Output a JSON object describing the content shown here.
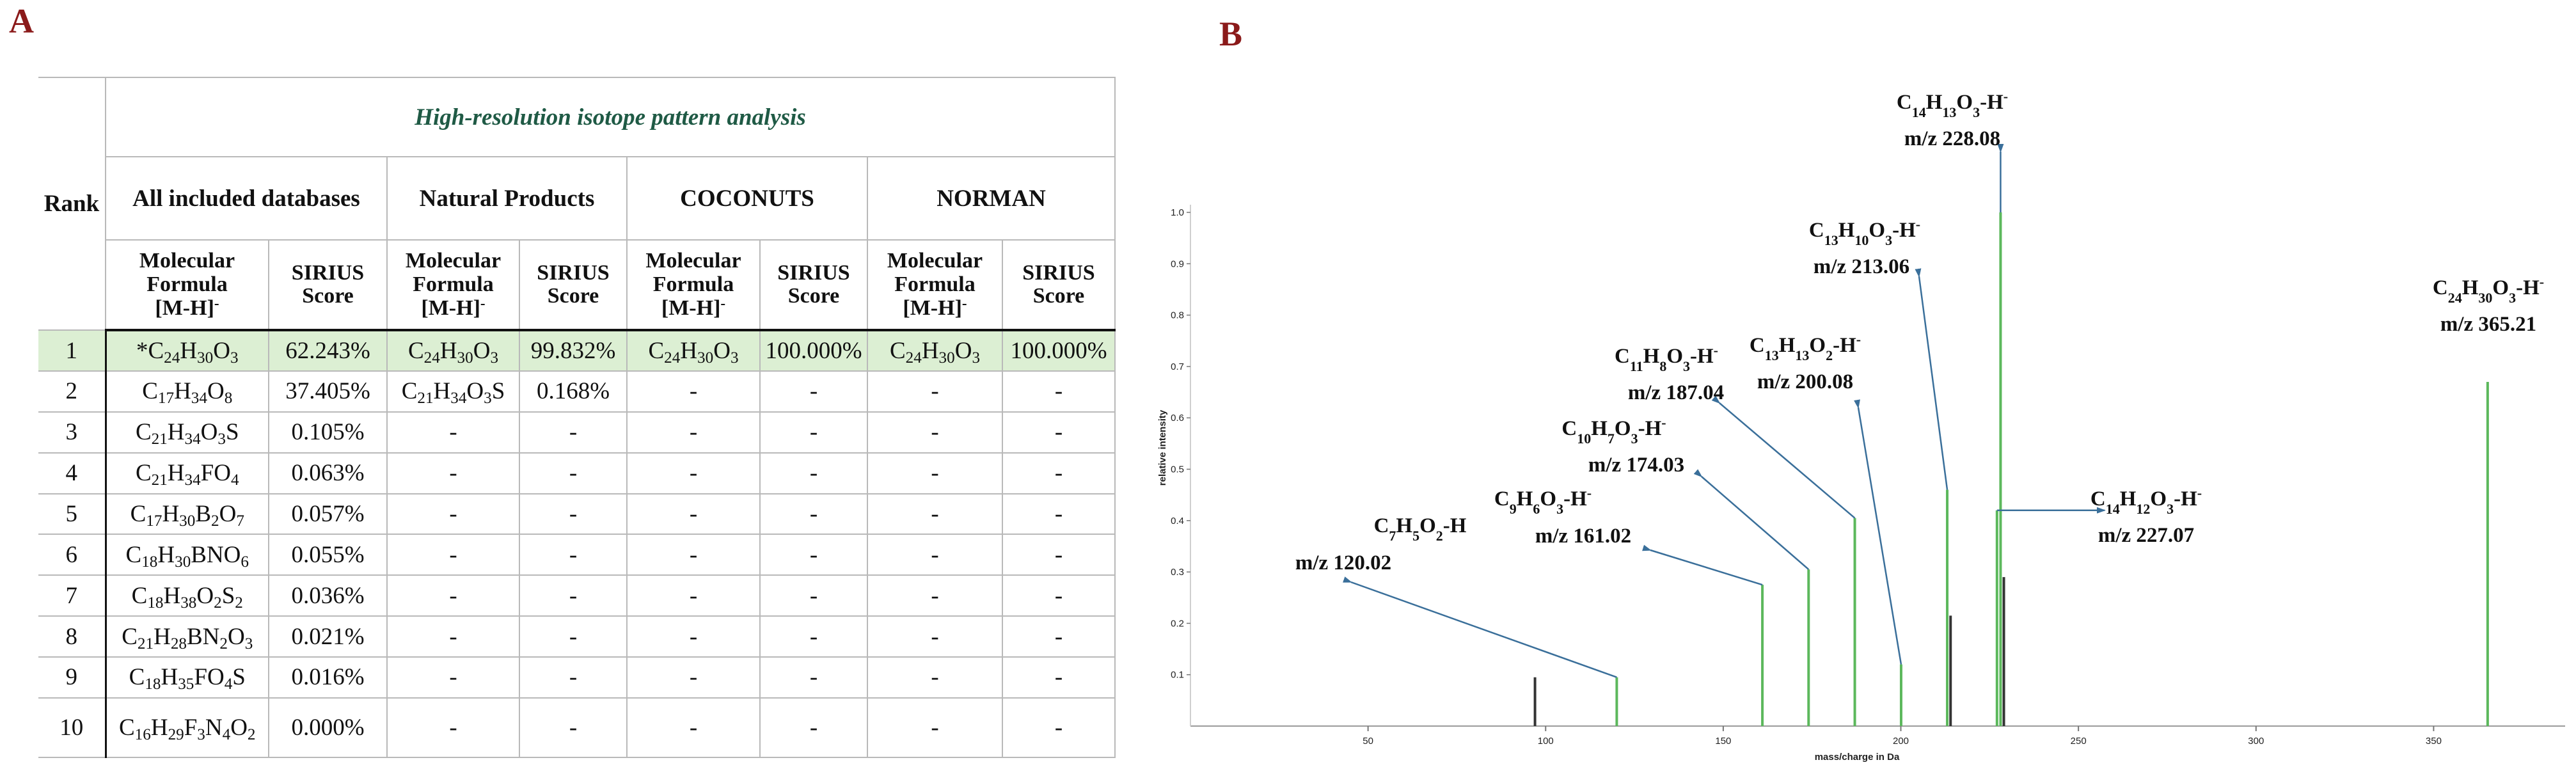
{
  "panel_a_label": "A",
  "panel_b_label": "B",
  "table": {
    "banner": "High-resolution isotope pattern analysis",
    "rank_header": "Rank",
    "databases": [
      "All included databases",
      "Natural Products",
      "COCONUTS",
      "NORMAN"
    ],
    "col_formula": "Molecular Formula [M-H]-",
    "col_score": "SIRIUS Score",
    "rows": [
      {
        "rank": "1",
        "cells": [
          "*C24H30O3",
          "62.243%",
          "C24H30O3",
          "99.832%",
          "C24H30O3",
          "100.000%",
          "C24H30O3",
          "100.000%"
        ]
      },
      {
        "rank": "2",
        "cells": [
          "C17H34O8",
          "37.405%",
          "C21H34O3S",
          "0.168%",
          "-",
          "-",
          "-",
          "-"
        ]
      },
      {
        "rank": "3",
        "cells": [
          "C21H34O3S",
          "0.105%",
          "-",
          "-",
          "-",
          "-",
          "-",
          "-"
        ]
      },
      {
        "rank": "4",
        "cells": [
          "C21H34FO4",
          "0.063%",
          "-",
          "-",
          "-",
          "-",
          "-",
          "-"
        ]
      },
      {
        "rank": "5",
        "cells": [
          "C17H30B2O7",
          "0.057%",
          "-",
          "-",
          "-",
          "-",
          "-",
          "-"
        ]
      },
      {
        "rank": "6",
        "cells": [
          "C18H30BNO6",
          "0.055%",
          "-",
          "-",
          "-",
          "-",
          "-",
          "-"
        ]
      },
      {
        "rank": "7",
        "cells": [
          "C18H38O2S2",
          "0.036%",
          "-",
          "-",
          "-",
          "-",
          "-",
          "-"
        ]
      },
      {
        "rank": "8",
        "cells": [
          "C21H28BN2O3",
          "0.021%",
          "-",
          "-",
          "-",
          "-",
          "-",
          "-"
        ]
      },
      {
        "rank": "9",
        "cells": [
          "C18H35FO4S",
          "0.016%",
          "-",
          "-",
          "-",
          "-",
          "-",
          "-"
        ]
      },
      {
        "rank": "10",
        "cells": [
          "C16H29F3N4O2",
          "0.000%",
          "-",
          "-",
          "-",
          "-",
          "-",
          "-"
        ]
      }
    ]
  },
  "chart_data": {
    "type": "bar",
    "xlabel": "mass/charge in Da",
    "ylabel": "relative intensity",
    "xlim": [
      0,
      380
    ],
    "ylim": [
      0,
      1.0
    ],
    "xticks": [
      50,
      100,
      150,
      200,
      250,
      300,
      350
    ],
    "yticks": [
      0.1,
      0.2,
      0.3,
      0.4,
      0.5,
      0.6,
      0.7,
      0.8,
      0.9,
      1.0
    ],
    "peaks": [
      {
        "mz": 97.0,
        "intensity": 0.095,
        "color": "#333333"
      },
      {
        "mz": 120.02,
        "intensity": 0.095,
        "color": "#5cb85c"
      },
      {
        "mz": 161.02,
        "intensity": 0.275,
        "color": "#5cb85c"
      },
      {
        "mz": 174.03,
        "intensity": 0.305,
        "color": "#5cb85c"
      },
      {
        "mz": 187.04,
        "intensity": 0.405,
        "color": "#5cb85c"
      },
      {
        "mz": 200.08,
        "intensity": 0.12,
        "color": "#5cb85c"
      },
      {
        "mz": 213.06,
        "intensity": 0.46,
        "color": "#5cb85c"
      },
      {
        "mz": 214.0,
        "intensity": 0.215,
        "color": "#333333"
      },
      {
        "mz": 227.07,
        "intensity": 0.42,
        "color": "#5cb85c"
      },
      {
        "mz": 228.08,
        "intensity": 1.0,
        "color": "#5cb85c"
      },
      {
        "mz": 229.0,
        "intensity": 0.29,
        "color": "#333333"
      },
      {
        "mz": 365.21,
        "intensity": 0.67,
        "color": "#5cb85c"
      }
    ],
    "annotations": [
      {
        "formula": "C7H5O2-H",
        "mz_text": "m/z 120.02"
      },
      {
        "formula": "C9H6O3-H-",
        "mz_text": "m/z 161.02"
      },
      {
        "formula": "C10H7O3-H-",
        "mz_text": "m/z 174.03"
      },
      {
        "formula": "C11H8O3-H-",
        "mz_text": "m/z 187.04"
      },
      {
        "formula": "C13H13O2-H-",
        "mz_text": "m/z 200.08"
      },
      {
        "formula": "C13H10O3-H-",
        "mz_text": "m/z 213.06"
      },
      {
        "formula": "C14H13O3-H-",
        "mz_text": "m/z 228.08"
      },
      {
        "formula": "C14H12O3-H-",
        "mz_text": "m/z 227.07"
      },
      {
        "formula": "C24H30O3-H-",
        "mz_text": "m/z 365.21"
      }
    ],
    "arrow_color": "#3a6f9a"
  }
}
